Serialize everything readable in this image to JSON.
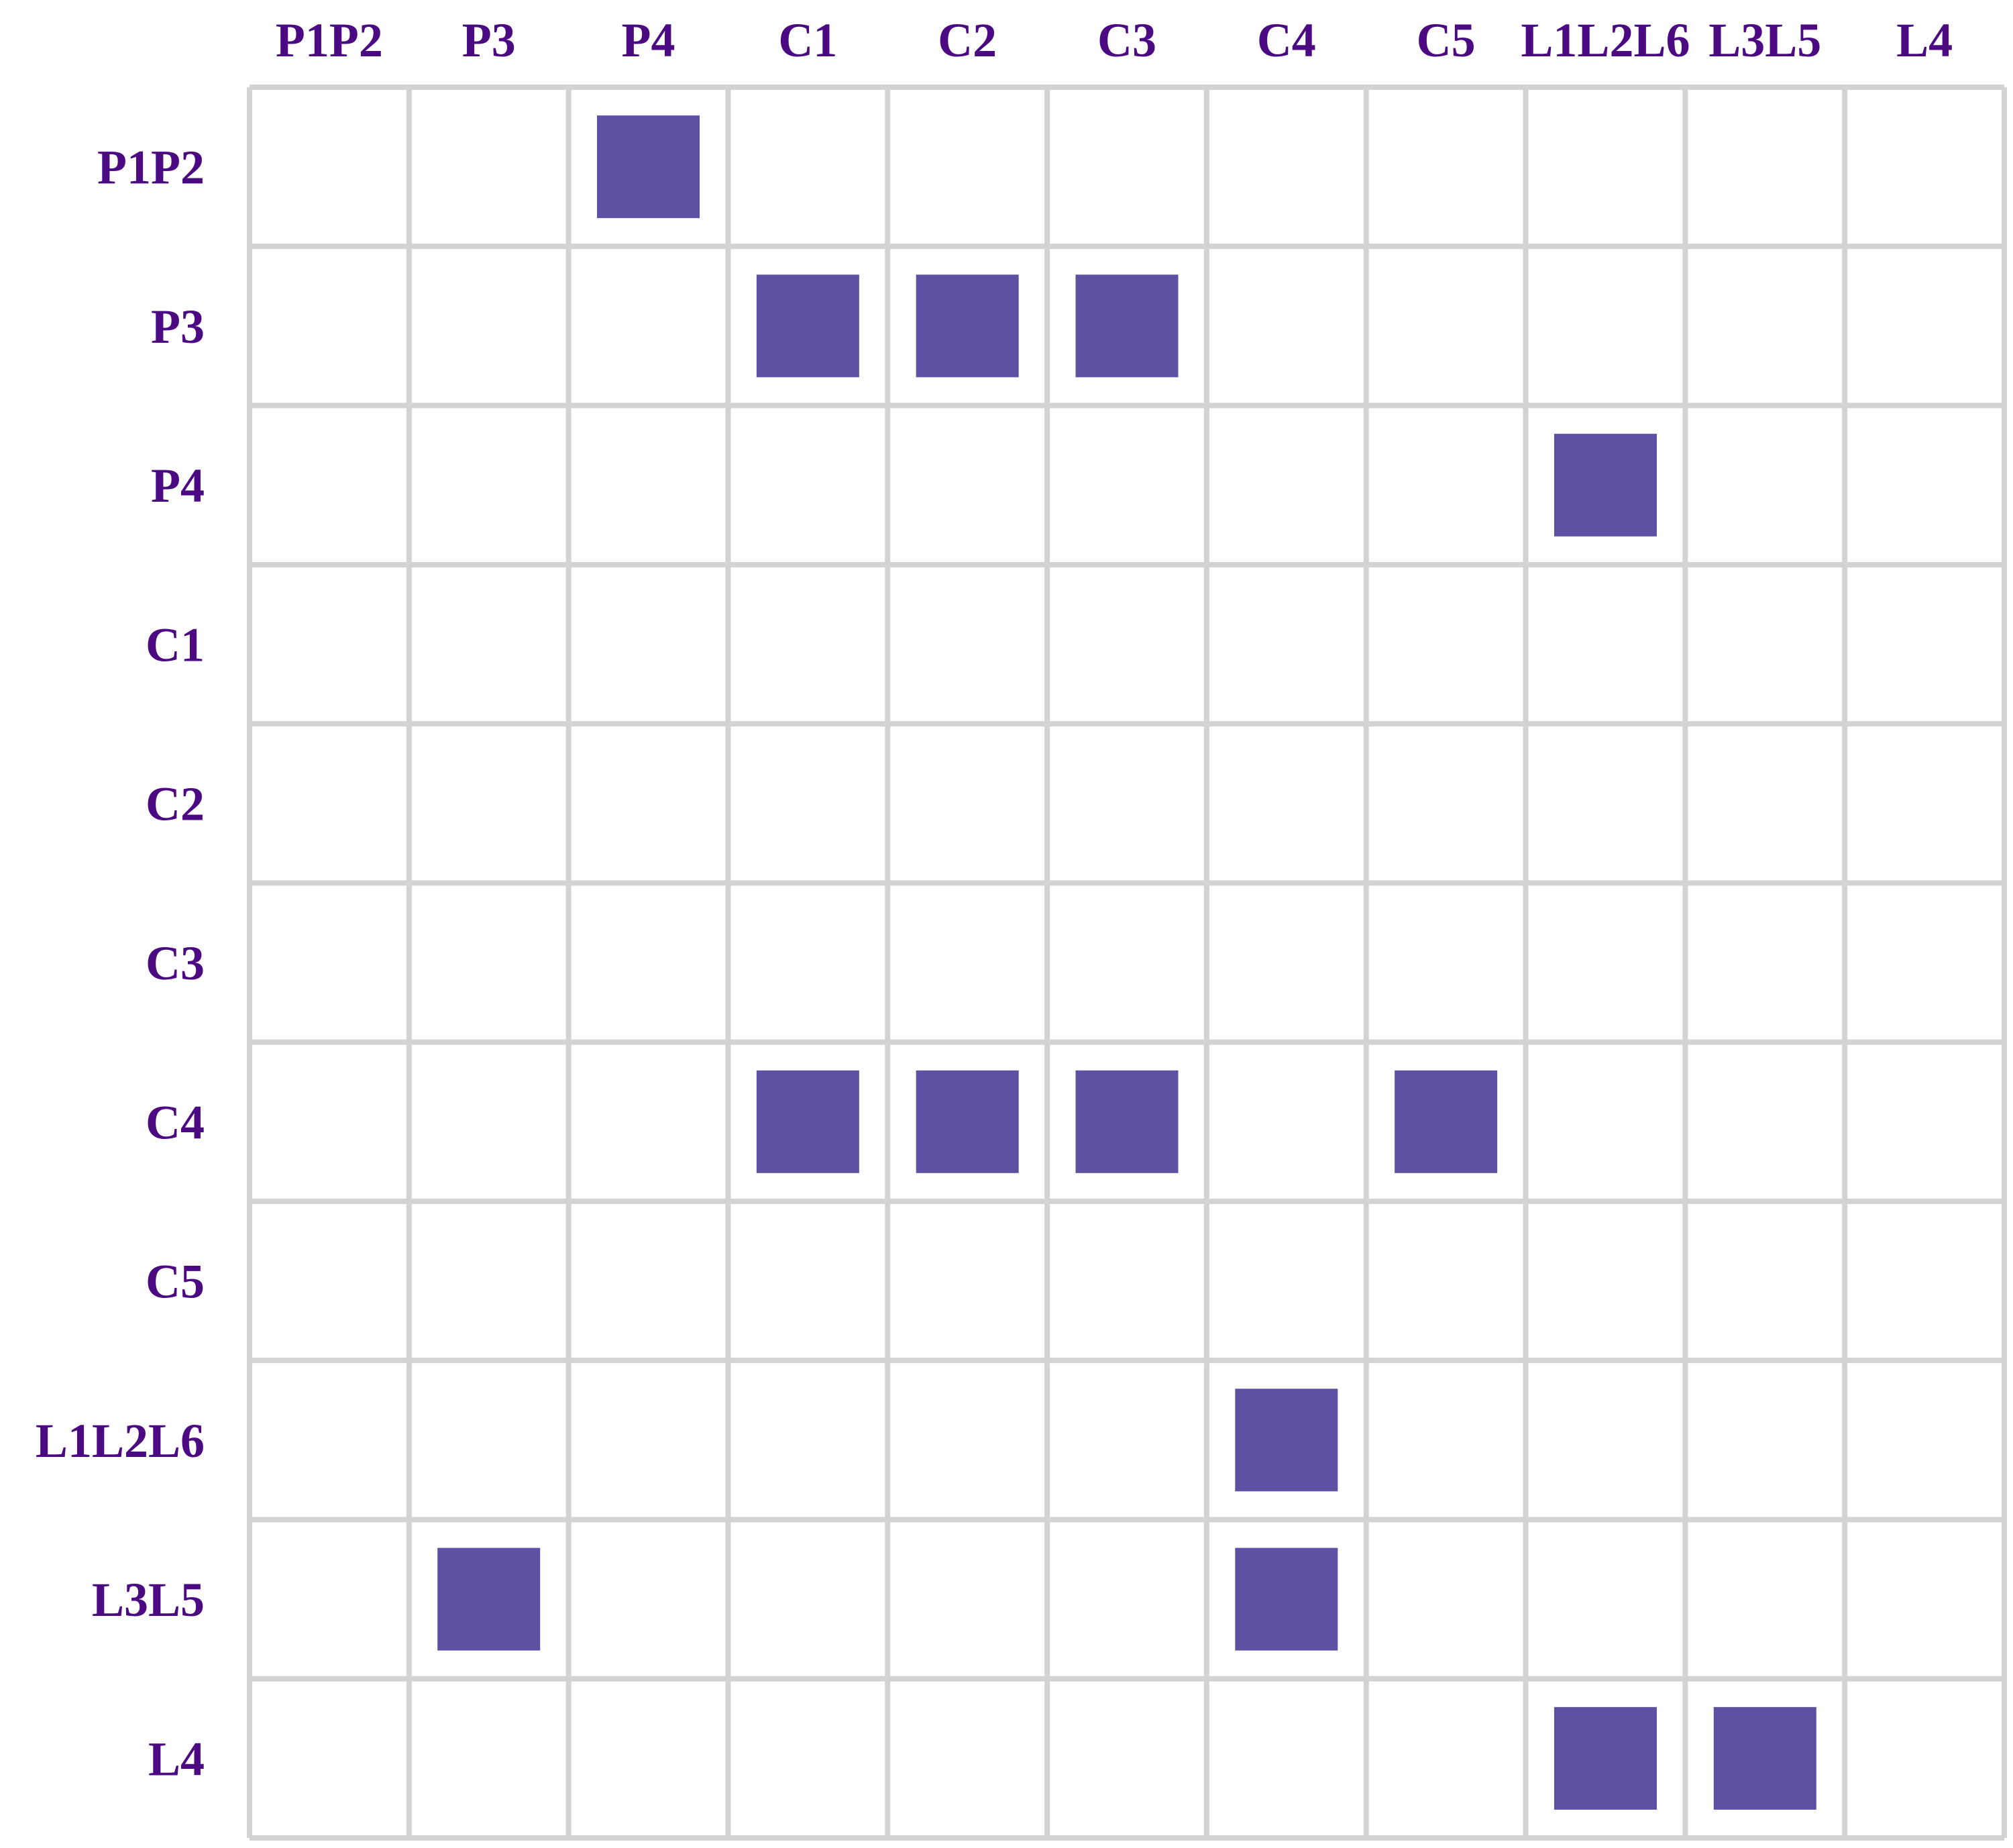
{
  "chart_data": {
    "type": "heatmap",
    "title": "",
    "xlabel": "",
    "ylabel": "",
    "x_categories": [
      "P1P2",
      "P3",
      "P4",
      "C1",
      "C2",
      "C3",
      "C4",
      "C5",
      "L1L2L6",
      "L3L5",
      "L4"
    ],
    "y_categories": [
      "P1P2",
      "P3",
      "P4",
      "C1",
      "C2",
      "C3",
      "C4",
      "C5",
      "L1L2L6",
      "L3L5",
      "L4"
    ],
    "x_axis_position": "top",
    "grid": true,
    "legend": false,
    "values": [
      [
        0,
        0,
        1,
        0,
        0,
        0,
        0,
        0,
        0,
        0,
        0
      ],
      [
        0,
        0,
        0,
        1,
        1,
        1,
        0,
        0,
        0,
        0,
        0
      ],
      [
        0,
        0,
        0,
        0,
        0,
        0,
        0,
        0,
        1,
        0,
        0
      ],
      [
        0,
        0,
        0,
        0,
        0,
        0,
        0,
        0,
        0,
        0,
        0
      ],
      [
        0,
        0,
        0,
        0,
        0,
        0,
        0,
        0,
        0,
        0,
        0
      ],
      [
        0,
        0,
        0,
        0,
        0,
        0,
        0,
        0,
        0,
        0,
        0
      ],
      [
        0,
        0,
        0,
        1,
        1,
        1,
        0,
        1,
        0,
        0,
        0
      ],
      [
        0,
        0,
        0,
        0,
        0,
        0,
        0,
        0,
        0,
        0,
        0
      ],
      [
        0,
        0,
        0,
        0,
        0,
        0,
        1,
        0,
        0,
        0,
        0
      ],
      [
        0,
        1,
        0,
        0,
        0,
        0,
        1,
        0,
        0,
        0,
        0
      ],
      [
        0,
        0,
        0,
        0,
        0,
        0,
        0,
        0,
        1,
        1,
        0
      ]
    ],
    "colors": {
      "cell_fill": "#5d51a3",
      "label_text": "#4b0a82",
      "grid_line": "#d3d3d3",
      "background": "#ffffff"
    }
  }
}
